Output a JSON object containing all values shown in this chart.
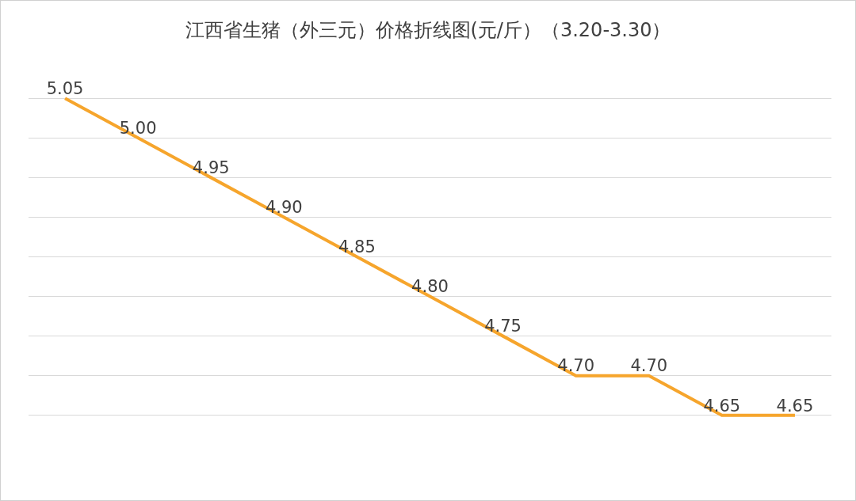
{
  "chart_data": {
    "type": "line",
    "title": "江西省生猪（外三元）价格折线图(元/斤）（3.20-3.30）",
    "categories": [
      null,
      null,
      null,
      null,
      null,
      null,
      null,
      null,
      null,
      null,
      null
    ],
    "values": [
      5.05,
      5.0,
      4.95,
      4.9,
      4.85,
      4.8,
      4.75,
      4.7,
      4.7,
      4.65,
      4.65
    ],
    "value_labels": [
      "5.05",
      "5.00",
      "4.95",
      "4.90",
      "4.85",
      "4.80",
      "4.75",
      "4.70",
      "4.70",
      "4.65",
      "4.65"
    ],
    "color": "#f6a52c",
    "marker": "none",
    "line_style": "solid",
    "grid": "y",
    "tick_labels": false
  }
}
